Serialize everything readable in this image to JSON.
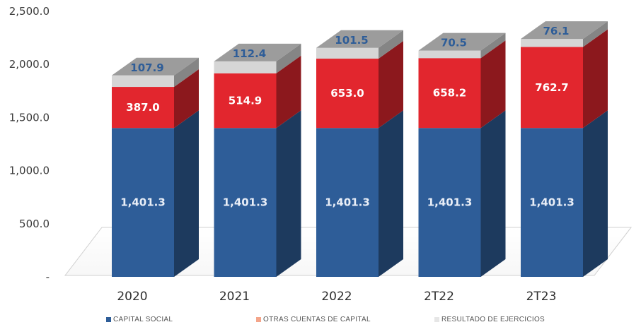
{
  "chart_data": {
    "type": "bar",
    "stacked": true,
    "three_d": true,
    "categories": [
      "2020",
      "2021",
      "2022",
      "2T22",
      "2T23"
    ],
    "series": [
      {
        "name": "CAPITAL SOCIAL",
        "color": "#2e5d98",
        "values": [
          1401.3,
          1401.3,
          1401.3,
          1401.3,
          1401.3
        ],
        "labels": [
          "1,401.3",
          "1,401.3",
          "1,401.3",
          "1,401.3",
          "1,401.3"
        ]
      },
      {
        "name": "OTRAS CUENTAS DE CAPITAL",
        "color": "#e2262e",
        "values": [
          387.0,
          514.9,
          653.0,
          658.2,
          762.7
        ],
        "labels": [
          "387.0",
          "514.9",
          "653.0",
          "658.2",
          "762.7"
        ]
      },
      {
        "name": "RESULTADO DE EJERCICIOS",
        "color": "#d6d6d6",
        "values": [
          107.9,
          112.4,
          101.5,
          70.5,
          76.1
        ],
        "labels": [
          "107.9",
          "112.4",
          "101.5",
          "70.5",
          "76.1"
        ]
      }
    ],
    "y_ticks": [
      0,
      500,
      1000,
      1500,
      2000,
      2500
    ],
    "y_tick_labels": [
      "-",
      "500.0",
      "1,000.0",
      "1,500.0",
      "2,000.0",
      "2,500.0"
    ],
    "ylim": [
      0,
      2500
    ],
    "grid": false,
    "legend_position": "bottom",
    "legend_swatch_colors": [
      "#2e5d98",
      "#f4a58a",
      "#e6e6e6"
    ]
  }
}
